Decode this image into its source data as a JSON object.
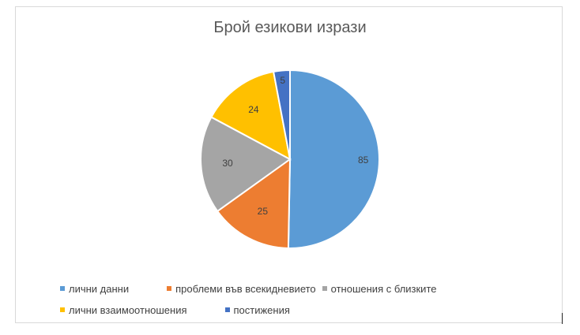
{
  "chart_data": {
    "type": "pie",
    "title": "Брой езикови изрази",
    "categories": [
      "лични данни",
      "проблеми във всекидневието",
      "отношения с близките",
      "лични взаимоотношения",
      "постижения"
    ],
    "values": [
      85,
      25,
      30,
      24,
      5
    ],
    "colors": [
      "#5b9bd5",
      "#ed7d31",
      "#a5a5a5",
      "#ffc000",
      "#4472c4"
    ],
    "data_labels": [
      "85",
      "25",
      "30",
      "24",
      "5"
    ],
    "legend_position": "bottom"
  }
}
